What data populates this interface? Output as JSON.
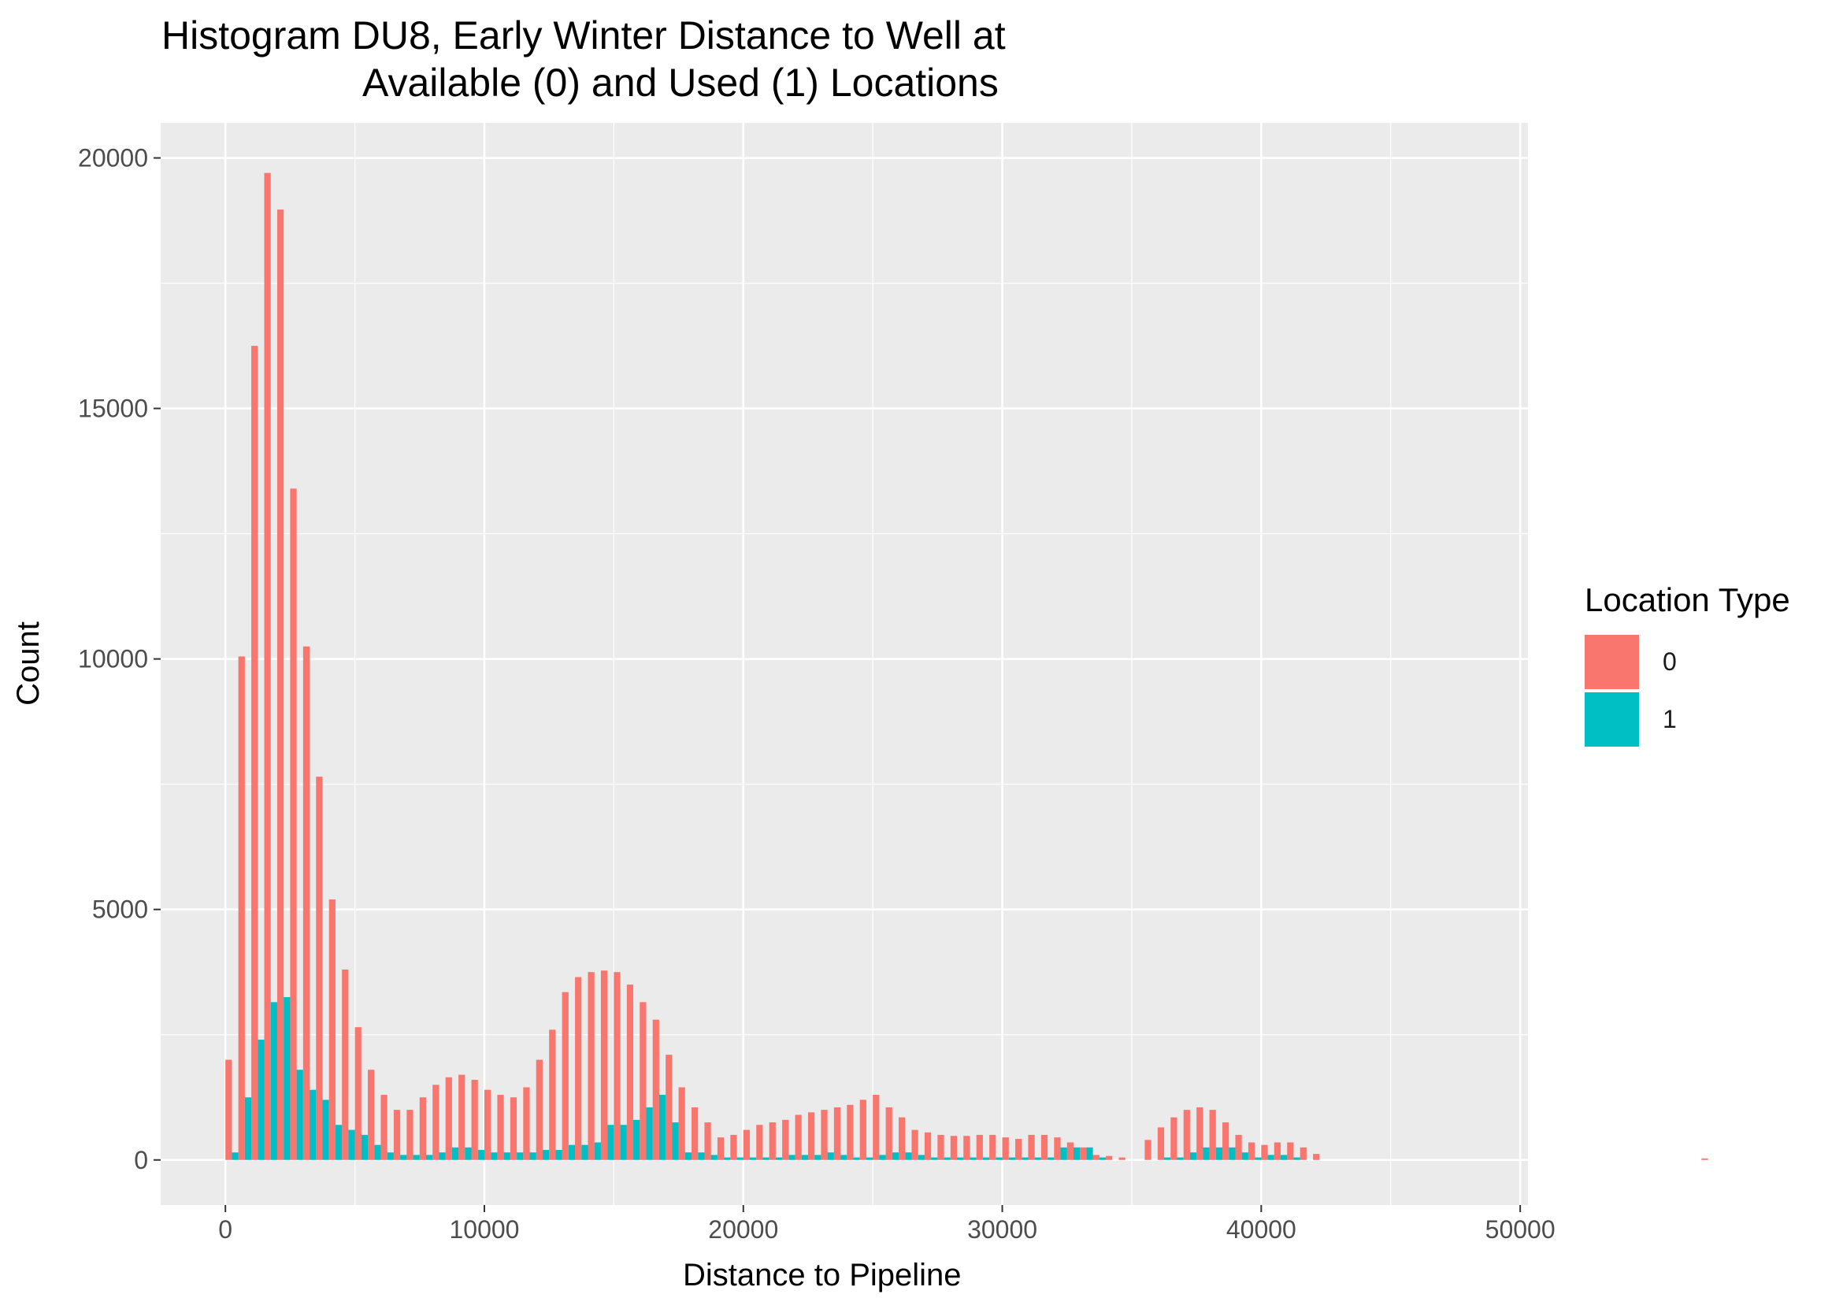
{
  "chart_data": {
    "type": "bar",
    "title": [
      "Histogram DU8, Early Winter Distance to Well at",
      "Available (0) and Used (1) Locations"
    ],
    "xlabel": "Distance to Pipeline",
    "ylabel": "Count",
    "xlim": [
      -2500,
      50300
    ],
    "ylim": [
      -900,
      20700
    ],
    "x_ticks": [
      0,
      10000,
      20000,
      30000,
      40000,
      50000
    ],
    "x_tick_labels": [
      "0",
      "10000",
      "20000",
      "30000",
      "40000",
      "50000"
    ],
    "y_ticks": [
      0,
      5000,
      10000,
      15000,
      20000
    ],
    "y_tick_labels": [
      "0",
      "5000",
      "10000",
      "15000",
      "20000"
    ],
    "grid": true,
    "legend": {
      "title": "Location Type",
      "position": "right"
    },
    "bin_width": 500,
    "bin_start": 0,
    "series": [
      {
        "name": "0",
        "color": "#F8766D",
        "values": [
          2000,
          10050,
          16250,
          19700,
          18970,
          13400,
          10250,
          7650,
          5200,
          3800,
          2650,
          1800,
          1300,
          1000,
          1000,
          1250,
          1500,
          1650,
          1700,
          1600,
          1400,
          1300,
          1250,
          1450,
          2000,
          2600,
          3350,
          3650,
          3750,
          3780,
          3750,
          3500,
          3150,
          2800,
          2100,
          1450,
          1050,
          750,
          450,
          500,
          600,
          700,
          750,
          800,
          900,
          950,
          1000,
          1050,
          1100,
          1200,
          1300,
          1050,
          850,
          600,
          550,
          500,
          480,
          480,
          500,
          500,
          450,
          420,
          500,
          500,
          450,
          350,
          250,
          100,
          80,
          50,
          0,
          400,
          650,
          850,
          1000,
          1050,
          1000,
          750,
          500,
          350,
          300,
          350,
          350,
          250,
          120,
          0,
          0,
          0,
          0,
          0,
          0,
          0,
          0,
          0,
          0,
          0,
          0,
          0,
          0,
          0,
          0,
          0,
          0,
          0,
          0,
          0,
          0,
          0,
          0,
          0,
          0,
          0,
          0,
          0,
          30
        ]
      },
      {
        "name": "1",
        "color": "#00BFC4",
        "values": [
          150,
          1250,
          2400,
          3150,
          3250,
          1800,
          1400,
          1200,
          700,
          600,
          500,
          300,
          150,
          100,
          100,
          100,
          150,
          250,
          250,
          200,
          150,
          150,
          150,
          150,
          200,
          200,
          300,
          300,
          350,
          700,
          700,
          800,
          1050,
          1300,
          750,
          150,
          150,
          100,
          50,
          50,
          50,
          50,
          50,
          100,
          100,
          100,
          150,
          100,
          50,
          50,
          100,
          150,
          150,
          100,
          50,
          50,
          50,
          50,
          50,
          50,
          50,
          50,
          50,
          50,
          250,
          250,
          250,
          50,
          0,
          0,
          0,
          0,
          50,
          50,
          150,
          250,
          250,
          250,
          150,
          50,
          100,
          100,
          50,
          0,
          0,
          0,
          0,
          0,
          0,
          0,
          0,
          0,
          0,
          0,
          0,
          0,
          0,
          0,
          0,
          0,
          0,
          0,
          0,
          0,
          0,
          0,
          0,
          0,
          0,
          0,
          0,
          0,
          0,
          0,
          0
        ]
      }
    ]
  }
}
